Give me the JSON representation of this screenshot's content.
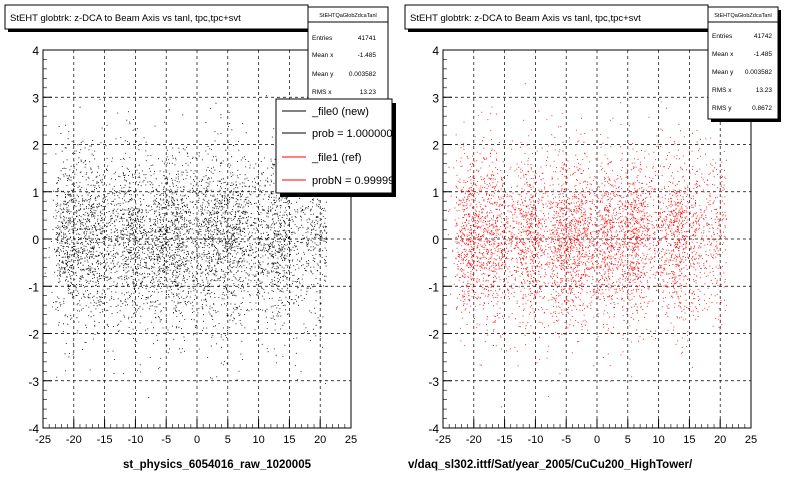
{
  "left": {
    "title": "StEHT globtrk: z-DCA to Beam Axis vs tanl, tpc,tpc+svt",
    "stats": {
      "name": "StEHTQaGlobZdcaTanl",
      "rows": [
        {
          "label": "Entries",
          "value": "41741"
        },
        {
          "label": "Mean x",
          "value": "-1.485"
        },
        {
          "label": "Mean y",
          "value": "0.003582"
        },
        {
          "label": "RMS x",
          "value": "13.23"
        }
      ]
    },
    "legend": [
      {
        "label": "_file0 (new)",
        "color": "#000000"
      },
      {
        "label": "prob = 1.000000",
        "color": "#000000"
      },
      {
        "label": "_file1 (ref)",
        "color": "#ff0000"
      },
      {
        "label": "probN = 0.99999",
        "color": "#ff0000"
      }
    ],
    "footer": "st_physics_6054016_raw_1020005"
  },
  "right": {
    "title": "StEHT globtrk: z-DCA to Beam Axis vs tanl, tpc,tpc+svt",
    "stats": {
      "name": "StEHTQaGlobZdcaTanl",
      "rows": [
        {
          "label": "Entries",
          "value": "41742"
        },
        {
          "label": "Mean x",
          "value": "-1.485"
        },
        {
          "label": "Mean y",
          "value": "0.003582"
        },
        {
          "label": "RMS x",
          "value": "13.23"
        },
        {
          "label": "RMS y",
          "value": "0.8672"
        }
      ]
    },
    "footer": "v/daq_sl302.ittf/Sat/year_2005/CuCu200_HighTower/"
  },
  "chart_data": [
    {
      "type": "scatter",
      "title": "StEHT globtrk: z-DCA to Beam Axis vs tanl, tpc,tpc+svt",
      "series": [
        {
          "name": "_file0 (new)",
          "color": "#000000"
        }
      ],
      "xlim": [
        -25,
        25
      ],
      "ylim": [
        -4,
        4
      ],
      "xticks": [
        -25,
        -20,
        -15,
        -10,
        -5,
        0,
        5,
        10,
        15,
        20,
        25
      ],
      "yticks": [
        -4,
        -3,
        -2,
        -1,
        0,
        1,
        2,
        3,
        4
      ],
      "grid": true,
      "stats": {
        "entries": 41741,
        "mean_x": -1.485,
        "mean_y": 0.003582,
        "rms_x": 13.23
      },
      "density_bands_x": [
        -21,
        -17,
        -11,
        -6,
        -3,
        2,
        6,
        13
      ],
      "y_spread": 0.8672
    },
    {
      "type": "scatter",
      "title": "StEHT globtrk: z-DCA to Beam Axis vs tanl, tpc,tpc+svt",
      "series": [
        {
          "name": "_file1 (ref)",
          "color": "#ff0000"
        }
      ],
      "xlim": [
        -25,
        25
      ],
      "ylim": [
        -4,
        4
      ],
      "xticks": [
        -25,
        -20,
        -15,
        -10,
        -5,
        0,
        5,
        10,
        15,
        20,
        25
      ],
      "yticks": [
        -4,
        -3,
        -2,
        -1,
        0,
        1,
        2,
        3,
        4
      ],
      "grid": true,
      "stats": {
        "entries": 41742,
        "mean_x": -1.485,
        "mean_y": 0.003582,
        "rms_x": 13.23,
        "rms_y": 0.8672
      },
      "density_bands_x": [
        -21,
        -17,
        -11,
        -6,
        -3,
        2,
        6,
        13
      ],
      "y_spread": 0.8672
    }
  ]
}
